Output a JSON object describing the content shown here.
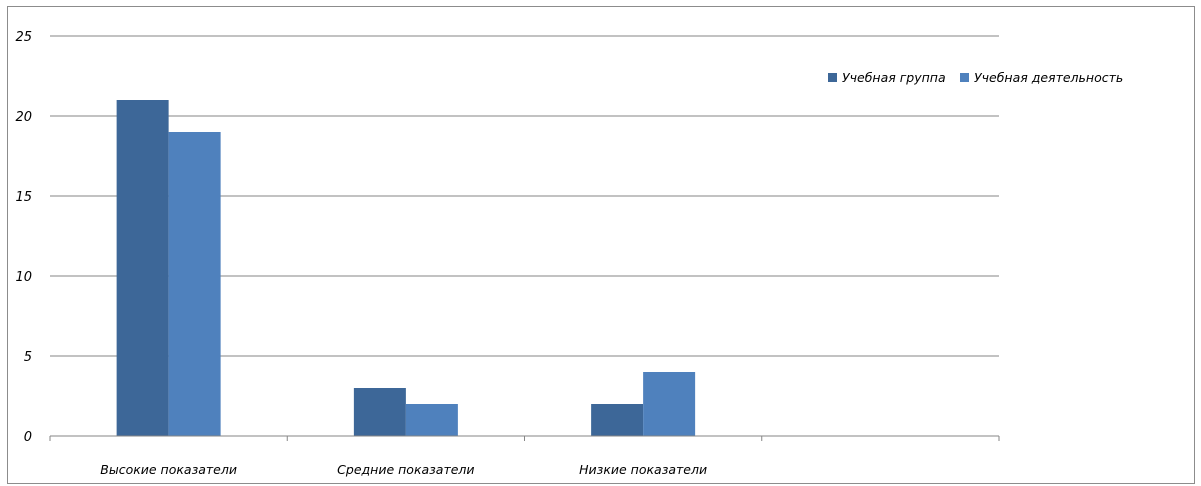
{
  "chart_data": {
    "type": "bar",
    "categories": [
      "Высокие показатели",
      "Средние показатели",
      "Низкие показатели",
      ""
    ],
    "series": [
      {
        "name": "Учебная группа",
        "values": [
          21,
          3,
          2,
          null
        ],
        "color": "#3D6798"
      },
      {
        "name": "Учебная деятельность",
        "values": [
          19,
          2,
          4,
          null
        ],
        "color": "#4F81BD"
      }
    ],
    "yticks": [
      "0",
      "5",
      "10",
      "15",
      "20",
      "25"
    ],
    "ylim": [
      0,
      25
    ],
    "grid": true,
    "legend_position": "top-right",
    "gridline_color": "#868686",
    "axis_color": "#868686"
  }
}
